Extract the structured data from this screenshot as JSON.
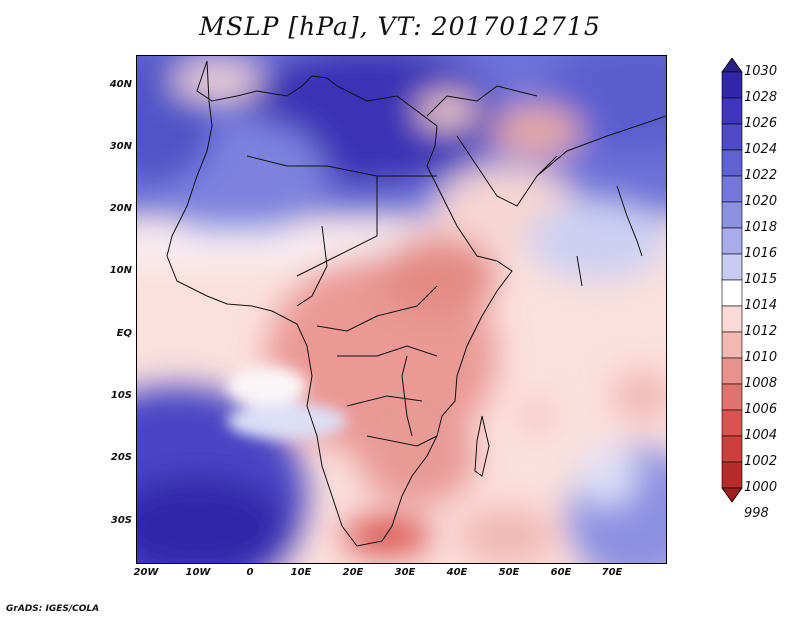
{
  "title": "MSLP [hPa], VT: 2017012715",
  "footer": "GrADS: IGES/COLA",
  "latitude_labels": [
    "40N",
    "30N",
    "20N",
    "10N",
    "EQ",
    "10S",
    "20S",
    "30S"
  ],
  "longitude_labels": [
    "20W",
    "10W",
    "0",
    "10E",
    "20E",
    "30E",
    "40E",
    "50E",
    "60E",
    "70E"
  ],
  "colorbar": {
    "labels": [
      "1030",
      "1028",
      "1026",
      "1024",
      "1022",
      "1020",
      "1018",
      "1016",
      "1015",
      "1014",
      "1012",
      "1010",
      "1008",
      "1006",
      "1004",
      "1002",
      "1000",
      "998"
    ],
    "colors": [
      "#2d1e8c",
      "#3426a8",
      "#3f36bd",
      "#4e4ac8",
      "#5f62d2",
      "#7478da",
      "#8d91e2",
      "#a9aceb",
      "#c9cbf3",
      "#ffffff",
      "#fbd9d6",
      "#f4b8b3",
      "#e8928d",
      "#e0736e",
      "#d9534f",
      "#cc3f3d",
      "#b82b2b",
      "#a01e1e"
    ]
  }
}
